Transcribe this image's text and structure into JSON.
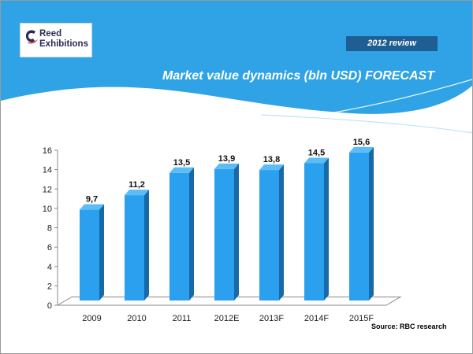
{
  "logo": {
    "line1": "Reed",
    "line2": "Exhibitions"
  },
  "review_tag": "2012 review",
  "slide_title": "Market value dynamics (bln USD) FORECAST",
  "source": "Source: RBC research",
  "colors": {
    "header_blue": "#2fa3e6",
    "bar_front": "#2ba0ef",
    "bar_side": "#1769a8",
    "bar_top": "#5cbcf5",
    "tag_bg": "#1f5e93"
  },
  "chart_data": {
    "type": "bar",
    "categories": [
      "2009",
      "2010",
      "2011",
      "2012E",
      "2013F",
      "2014F",
      "2015F"
    ],
    "values": [
      9.7,
      11.2,
      13.5,
      13.9,
      13.8,
      14.5,
      15.6
    ],
    "value_labels": [
      "9,7",
      "11,2",
      "13,5",
      "13,9",
      "13,8",
      "14,5",
      "15,6"
    ],
    "y_ticks": [
      0,
      2,
      4,
      6,
      8,
      10,
      12,
      14,
      16
    ],
    "ylim": [
      0,
      16
    ],
    "grid": false,
    "legend": false,
    "style": "3d-column"
  }
}
